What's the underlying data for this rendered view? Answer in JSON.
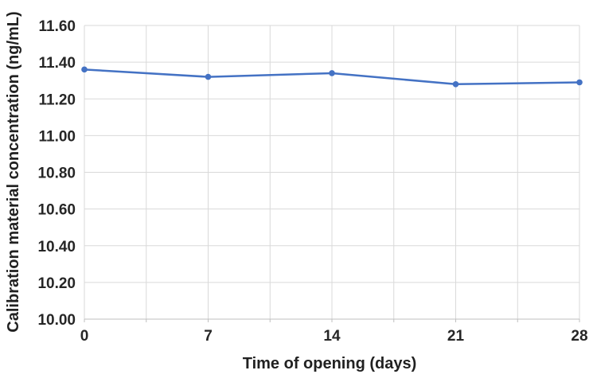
{
  "figure": {
    "background": "#FFFFFF"
  },
  "chart_data": {
    "type": "line",
    "title": "",
    "xlabel": "Time of opening (days)",
    "ylabel": "Calibration material concentration (ng/mL)",
    "x": [
      0,
      7,
      14,
      21,
      28
    ],
    "series": [
      {
        "name": "Calibration material concentration (ng/mL)",
        "values": [
          11.36,
          11.32,
          11.34,
          11.28,
          11.29
        ]
      }
    ],
    "xlim": [
      0,
      28
    ],
    "ylim": [
      10.0,
      11.6
    ],
    "y_tick_step": 0.2,
    "y_tick_decimals": 2,
    "x_grid_step": 3.5,
    "x_tick_values": [
      0,
      7,
      14,
      21,
      28
    ],
    "grid": "on",
    "legend": "none",
    "line_color": "#4472C4",
    "marker_color": "#4472C4",
    "grid_color": "#D9D9D9",
    "axis_line_color": "#BFBFBF",
    "tick_label_color": "#262626"
  }
}
